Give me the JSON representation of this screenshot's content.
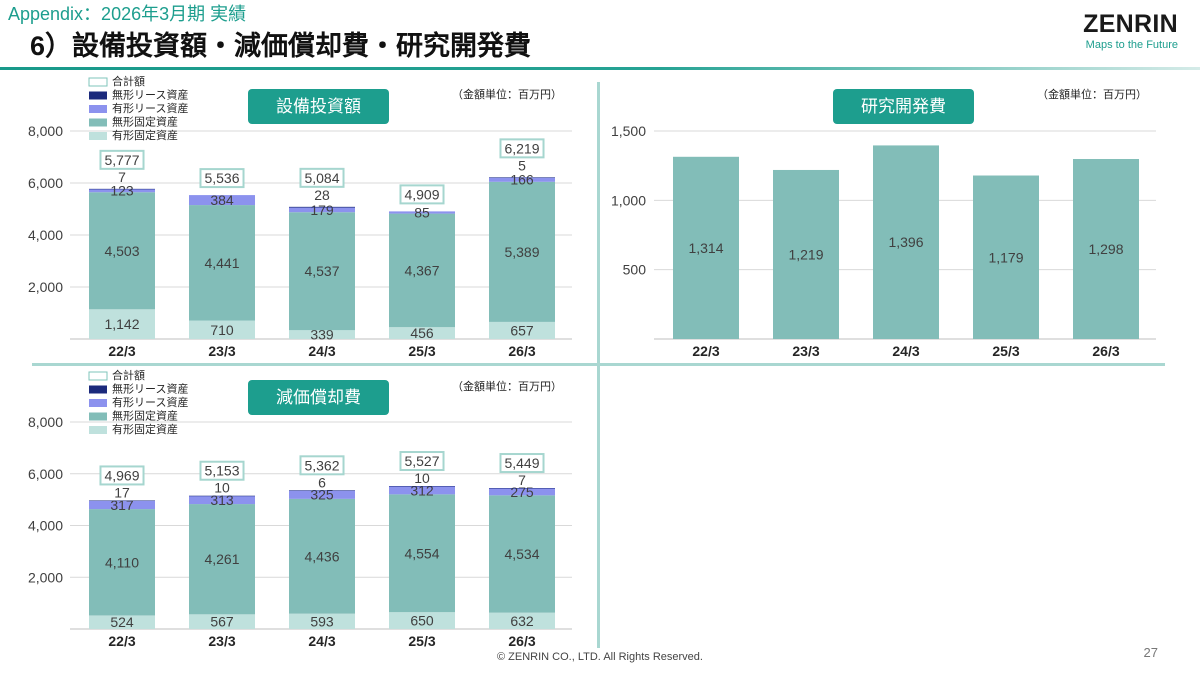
{
  "header": {
    "appendix": "Appendix：2026年3月期 実績",
    "title": "6）設備投資額・減価償却費・研究開発費"
  },
  "logo": {
    "name": "ZENRIN",
    "tagline": "Maps to the Future"
  },
  "colors": {
    "accent": "#1d9e8e",
    "divider": "#a9d7d1",
    "total_box_border": "#a6d6cf"
  },
  "chart_data": [
    {
      "type": "bar",
      "stacked": true,
      "title": "設備投資額",
      "unit_note": "（金額単位：百万円）",
      "categories": [
        "22/3",
        "23/3",
        "24/3",
        "25/3",
        "26/3"
      ],
      "series": [
        {
          "name": "有形固定資産",
          "color": "#bfe1dd",
          "values": [
            1142,
            710,
            339,
            456,
            657
          ]
        },
        {
          "name": "無形固定資産",
          "color": "#82bdb8",
          "values": [
            4503,
            4441,
            4537,
            4367,
            5389
          ]
        },
        {
          "name": "有形リース資産",
          "color": "#8c92ee",
          "values": [
            123,
            384,
            179,
            85,
            166
          ]
        },
        {
          "name": "無形リース資産",
          "color": "#1b2a7c",
          "values": [
            7,
            null,
            28,
            null,
            5
          ]
        }
      ],
      "totals": {
        "name": "合計額",
        "values": [
          5777,
          5536,
          5084,
          4909,
          6219
        ]
      },
      "ylim": [
        0,
        8000
      ],
      "yticks": [
        2000,
        4000,
        6000,
        8000
      ],
      "grid": true,
      "legend": "top-left"
    },
    {
      "type": "bar",
      "title": "研究開発費",
      "unit_note": "（金額単位：百万円）",
      "categories": [
        "22/3",
        "23/3",
        "24/3",
        "25/3",
        "26/3"
      ],
      "values": [
        1314,
        1219,
        1396,
        1179,
        1298
      ],
      "color": "#82bdb8",
      "ylim": [
        0,
        1500
      ],
      "yticks": [
        500,
        1000,
        1500
      ],
      "grid": true
    },
    {
      "type": "bar",
      "stacked": true,
      "title": "減価償却費",
      "unit_note": "（金額単位：百万円）",
      "categories": [
        "22/3",
        "23/3",
        "24/3",
        "25/3",
        "26/3"
      ],
      "series": [
        {
          "name": "有形固定資産",
          "color": "#bfe1dd",
          "values": [
            524,
            567,
            593,
            650,
            632
          ]
        },
        {
          "name": "無形固定資産",
          "color": "#82bdb8",
          "values": [
            4110,
            4261,
            4436,
            4554,
            4534
          ]
        },
        {
          "name": "有形リース資産",
          "color": "#8c92ee",
          "values": [
            317,
            313,
            325,
            312,
            275
          ]
        },
        {
          "name": "無形リース資産",
          "color": "#1b2a7c",
          "values": [
            17,
            10,
            6,
            10,
            7
          ]
        }
      ],
      "totals": {
        "name": "合計額",
        "values": [
          4969,
          5153,
          5362,
          5527,
          5449
        ]
      },
      "ylim": [
        0,
        8000
      ],
      "yticks": [
        2000,
        4000,
        6000,
        8000
      ],
      "grid": true,
      "legend": "top-left"
    }
  ],
  "footer": {
    "copyright": "© ZENRIN CO., LTD. All Rights Reserved.",
    "page_number": "27"
  }
}
